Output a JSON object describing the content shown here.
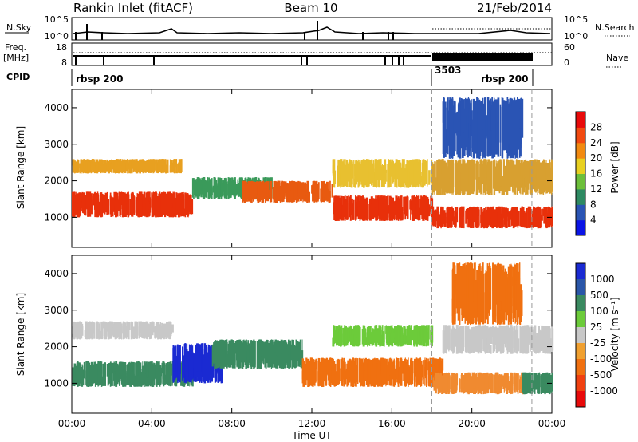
{
  "header": {
    "station": "Rankin Inlet (fitACF)",
    "beam": "Beam 10",
    "date": "21/Feb/2014"
  },
  "strip": {
    "nsky_label": "N.Sky",
    "nsky_top": "10^5",
    "nsky_bottom": "10^0",
    "nsearch_label": "N.Search",
    "nsearch_top": "10^5",
    "nsearch_bottom": "10^0",
    "freq_label_1": "Freq.",
    "freq_label_2": "[MHz]",
    "freq_top": "18",
    "freq_bottom": "8",
    "nave_label": "Nave",
    "nave_top": "60",
    "nave_bottom": "0",
    "cpid_label": "CPID",
    "cpid_segments": [
      {
        "name": "rbsp 200",
        "start_h": 0.0,
        "end_h": 18.0
      },
      {
        "name": "3503",
        "start_h": 18.0,
        "end_h": 23.0
      },
      {
        "name": "rbsp 200",
        "start_h": 18.0,
        "end_h": 23.0
      }
    ]
  },
  "chart_data": [
    {
      "type": "heatmap",
      "name": "power",
      "ylabel": "Slant Range [km]",
      "xlabel": "Time UT",
      "x_ticks": [
        "00:00",
        "04:00",
        "08:00",
        "12:00",
        "16:00",
        "20:00",
        "00:00"
      ],
      "xlim_hours": [
        0,
        24
      ],
      "ylim_km": [
        180,
        4500
      ],
      "y_ticks": [
        1000,
        2000,
        3000,
        4000
      ],
      "colorbar_label": "Power [dB]",
      "colorbar_ticks": [
        "4",
        "8",
        "12",
        "16",
        "20",
        "24",
        "28"
      ],
      "colorbar_colors": [
        "#0a14e6",
        "#2a54b4",
        "#2e8a62",
        "#6cbf3a",
        "#e8d020",
        "#f28a10",
        "#f24a10",
        "#e80a0a"
      ],
      "dashed_times_h": [
        18.0,
        23.0
      ],
      "bands": [
        {
          "t0": 0.0,
          "t1": 6.0,
          "r0": 1000,
          "r1": 1700,
          "c": "#e8300a"
        },
        {
          "t0": 0.0,
          "t1": 5.5,
          "r0": 2200,
          "r1": 2600,
          "c": "#e8a020"
        },
        {
          "t0": 6.0,
          "t1": 10.0,
          "r0": 1500,
          "r1": 2100,
          "c": "#3a9a5a"
        },
        {
          "t0": 8.5,
          "t1": 13.0,
          "r0": 1400,
          "r1": 2000,
          "c": "#e85a10"
        },
        {
          "t0": 13.0,
          "t1": 18.0,
          "r0": 900,
          "r1": 1600,
          "c": "#e8300a"
        },
        {
          "t0": 13.0,
          "t1": 18.0,
          "r0": 1800,
          "r1": 2600,
          "c": "#e8c030"
        },
        {
          "t0": 18.0,
          "t1": 24.0,
          "r0": 700,
          "r1": 1300,
          "c": "#e8300a"
        },
        {
          "t0": 18.0,
          "t1": 24.0,
          "r0": 1600,
          "r1": 2600,
          "c": "#d8a030"
        },
        {
          "t0": 18.5,
          "t1": 22.5,
          "r0": 2600,
          "r1": 4300,
          "c": "#2a54b4"
        }
      ]
    },
    {
      "type": "heatmap",
      "name": "velocity",
      "ylabel": "Slant Range [km]",
      "xlabel": "Time UT",
      "x_ticks": [
        "00:00",
        "04:00",
        "08:00",
        "12:00",
        "16:00",
        "20:00",
        "00:00"
      ],
      "xlim_hours": [
        0,
        24
      ],
      "ylim_km": [
        180,
        4500
      ],
      "y_ticks": [
        1000,
        2000,
        3000,
        4000
      ],
      "colorbar_label": "Velocity [m s⁻¹]",
      "colorbar_ticks": [
        "1000",
        "500",
        "100",
        "25",
        "-25",
        "-100",
        "-500",
        "-1000"
      ],
      "colorbar_colors": [
        "#1a2ad2",
        "#2a56a8",
        "#3a8a60",
        "#6ccb3a",
        "#c8c8c8",
        "#f0a030",
        "#f07010",
        "#f04010",
        "#e80a0a"
      ],
      "dashed_times_h": [
        18.0,
        23.0
      ],
      "bands": [
        {
          "t0": 0.0,
          "t1": 6.0,
          "r0": 900,
          "r1": 1600,
          "c": "#3a8a60"
        },
        {
          "t0": 0.0,
          "t1": 5.0,
          "r0": 2200,
          "r1": 2700,
          "c": "#c8c8c8"
        },
        {
          "t0": 5.0,
          "t1": 7.5,
          "r0": 1000,
          "r1": 2100,
          "c": "#1a2ad2"
        },
        {
          "t0": 7.0,
          "t1": 11.5,
          "r0": 1400,
          "r1": 2200,
          "c": "#3a8a60"
        },
        {
          "t0": 11.5,
          "t1": 18.5,
          "r0": 900,
          "r1": 1700,
          "c": "#f07010"
        },
        {
          "t0": 13.0,
          "t1": 18.0,
          "r0": 2000,
          "r1": 2600,
          "c": "#6ccb3a"
        },
        {
          "t0": 18.0,
          "t1": 22.5,
          "r0": 700,
          "r1": 1300,
          "c": "#f08a30"
        },
        {
          "t0": 22.5,
          "t1": 24.0,
          "r0": 700,
          "r1": 1300,
          "c": "#3a8a60"
        },
        {
          "t0": 18.5,
          "t1": 24.0,
          "r0": 1800,
          "r1": 2600,
          "c": "#c8c8c8"
        },
        {
          "t0": 19.0,
          "t1": 22.5,
          "r0": 2600,
          "r1": 4300,
          "c": "#f07010"
        }
      ]
    }
  ]
}
